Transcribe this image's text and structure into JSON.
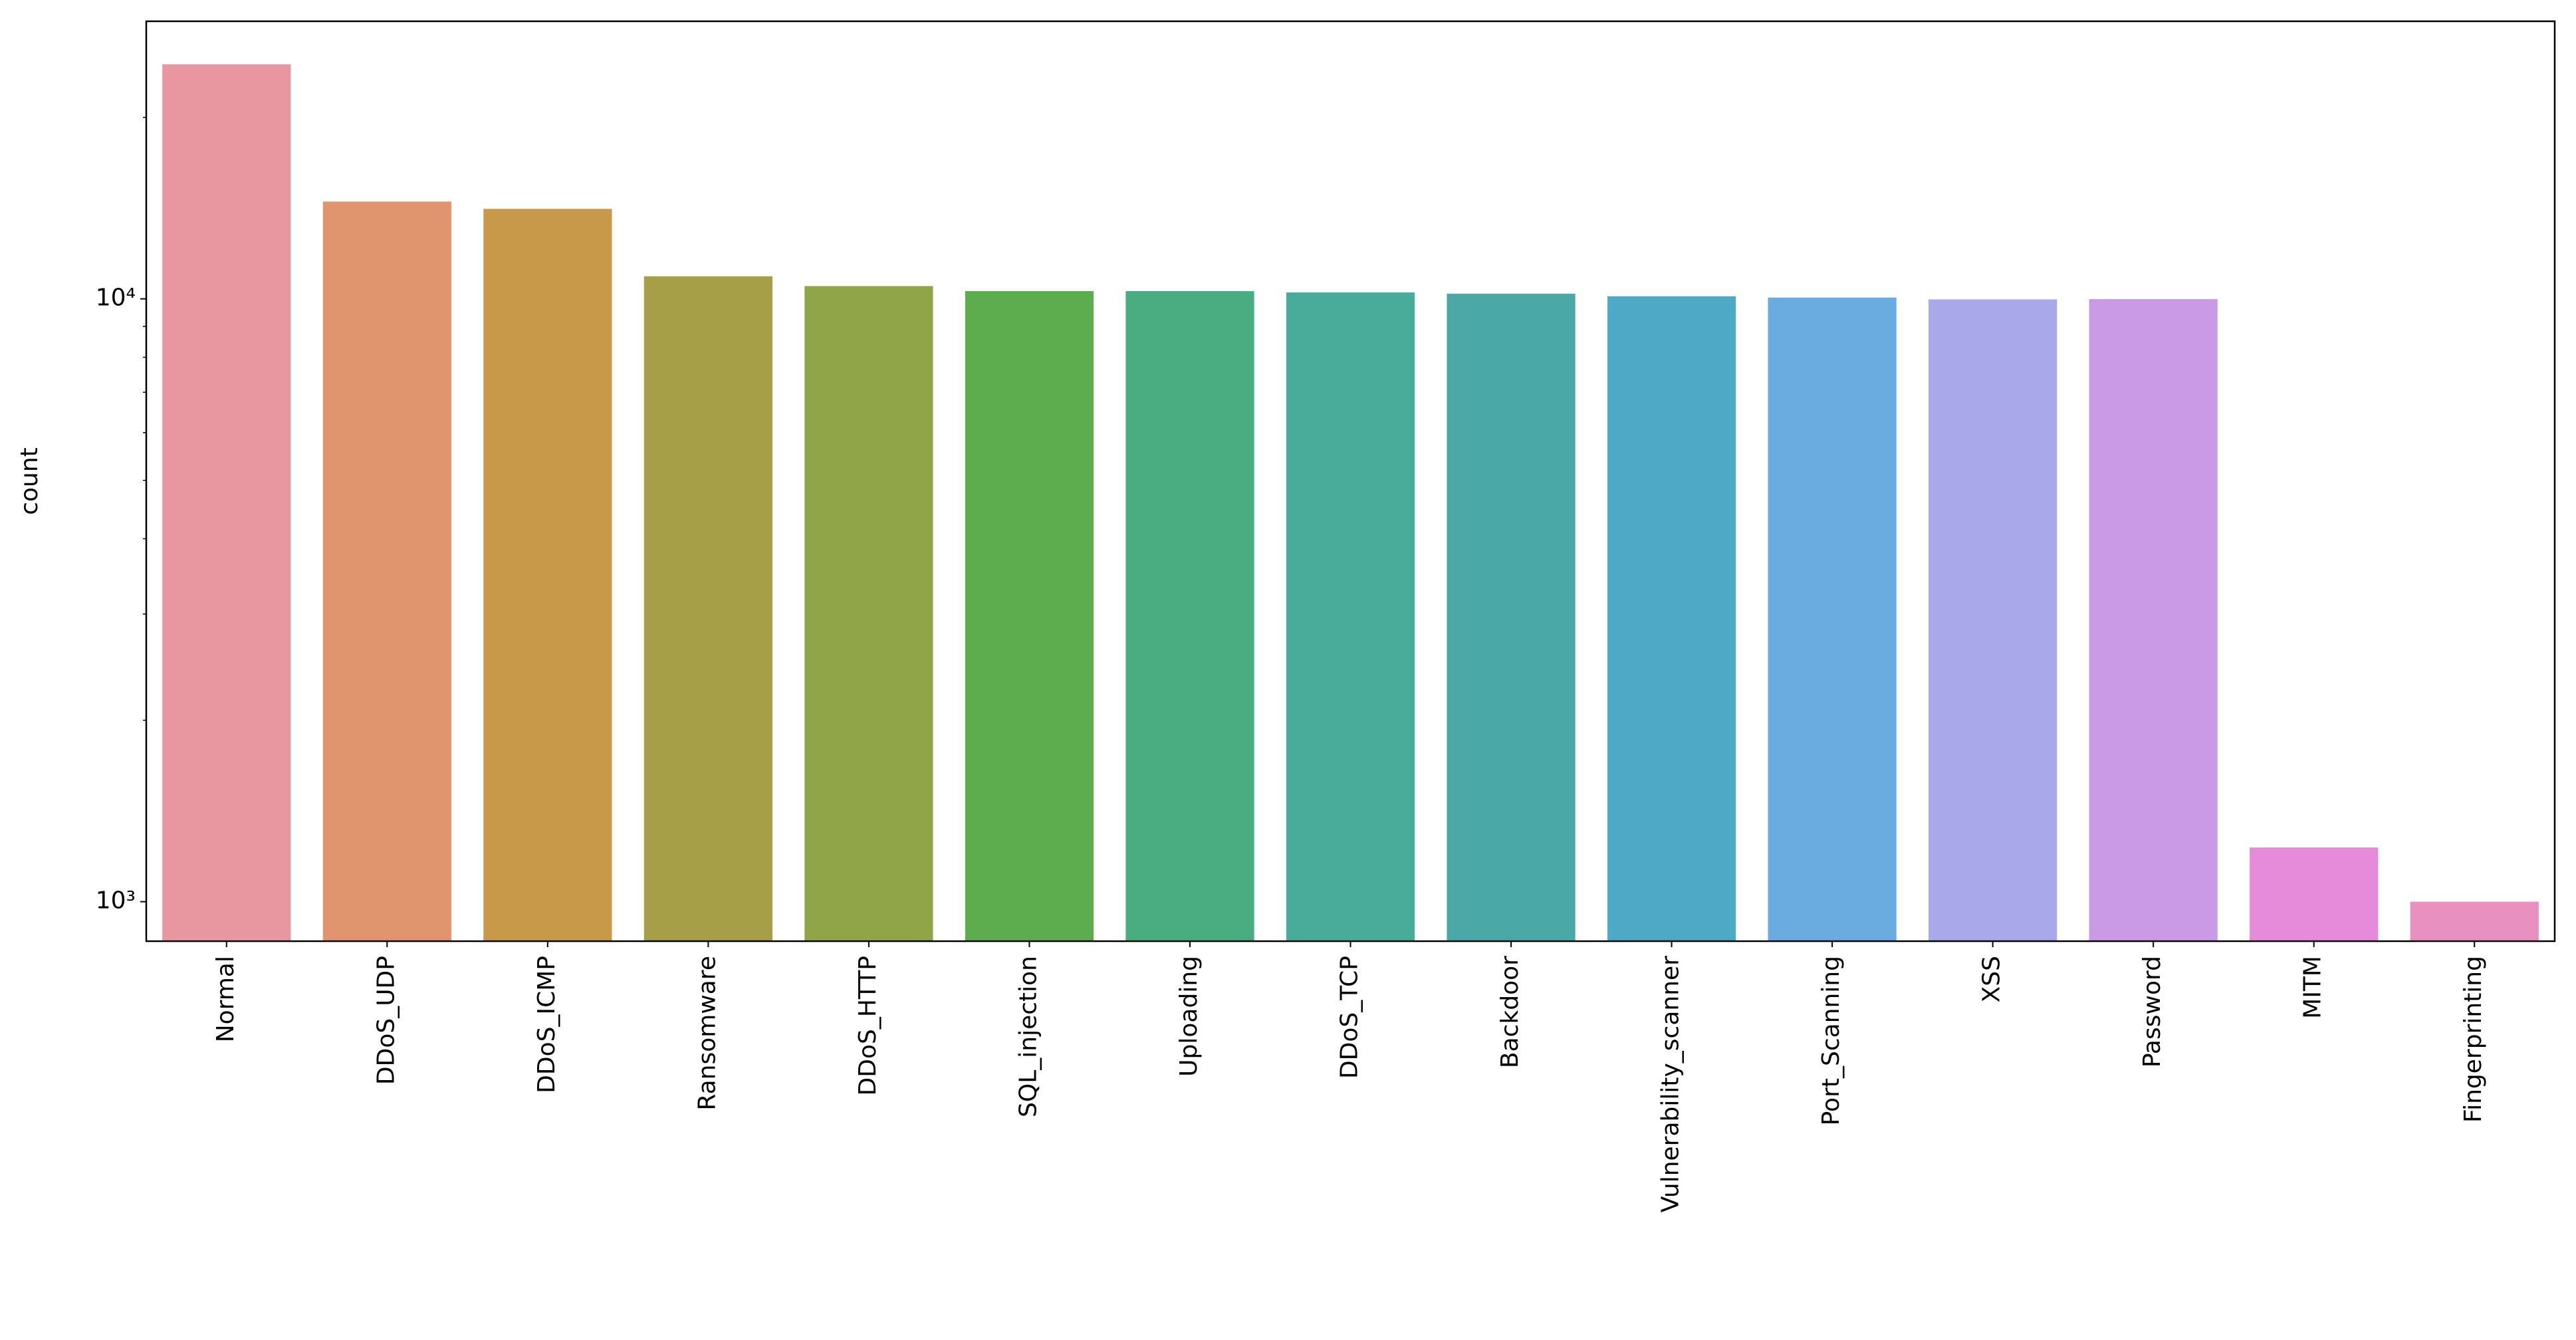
{
  "chart_data": {
    "type": "bar",
    "ylabel": "count",
    "log_y": true,
    "categories": [
      "Normal",
      "DDoS_UDP",
      "DDoS_ICMP",
      "Ransomware",
      "DDoS_HTTP",
      "SQL_injection",
      "Uploading",
      "DDoS_TCP",
      "Backdoor",
      "Vulnerability_scanner",
      "Port_Scanning",
      "XSS",
      "Password",
      "MITM",
      "Fingerprinting"
    ],
    "values": [
      24500,
      14500,
      14100,
      10900,
      10500,
      10300,
      10300,
      10250,
      10200,
      10100,
      10050,
      9980,
      9990,
      1230,
      1000
    ],
    "colors": [
      "#e8969f",
      "#e0956f",
      "#c9994a",
      "#a79f47",
      "#90a548",
      "#5dac4d",
      "#4aad82",
      "#49ac9a",
      "#4aa9a7",
      "#4da9c5",
      "#6aabe0",
      "#a9a8ea",
      "#cb9ae6",
      "#e68ada",
      "#e890c0"
    ],
    "ylim": [
      860,
      28870
    ],
    "yticks": [
      {
        "value": 1000,
        "label": "10³"
      },
      {
        "value": 10000,
        "label": "10⁴"
      }
    ],
    "yticks_minor": [
      2000,
      3000,
      4000,
      5000,
      6000,
      7000,
      8000,
      9000,
      20000
    ]
  }
}
